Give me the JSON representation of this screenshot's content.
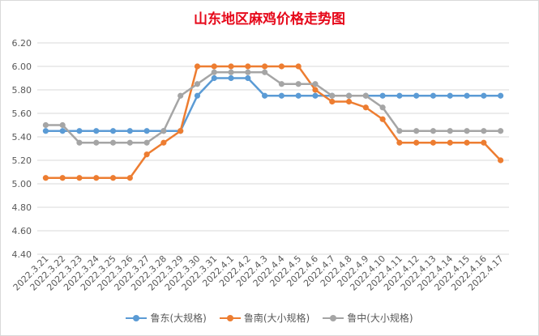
{
  "chart_data": {
    "type": "line",
    "title": "山东地区麻鸡价格走势图",
    "xlabel": "",
    "ylabel": "",
    "ylim": [
      4.4,
      6.2
    ],
    "yticks": [
      "6.20",
      "6.00",
      "5.80",
      "5.60",
      "5.40",
      "5.20",
      "5.00",
      "4.80",
      "4.60",
      "4.40"
    ],
    "grid": true,
    "legend_position": "bottom",
    "categories": [
      "2022.3.21",
      "2022.3.22",
      "2022.3.23",
      "2022.3.24",
      "2022.3.25",
      "2022.3.26",
      "2022.3.27",
      "2022.3.28",
      "2022.3.29",
      "2022.3.30",
      "2022.3.31",
      "2022.4.1",
      "2022.4.2",
      "2022.4.3",
      "2022.4.4",
      "2022.4.5",
      "2022.4.6",
      "2022.4.7",
      "2022.4.8",
      "2022.4.9",
      "2022.4.10",
      "2022.4.11",
      "2022.4.12",
      "2022.4.13",
      "2022.4.14",
      "2022.4.15",
      "2022.4.16",
      "2022.4.17"
    ],
    "series": [
      {
        "name": "鲁东(大规格)",
        "color": "#5b9bd5",
        "values": [
          5.45,
          5.45,
          5.45,
          5.45,
          5.45,
          5.45,
          5.45,
          5.45,
          5.45,
          5.75,
          5.9,
          5.9,
          5.9,
          5.75,
          5.75,
          5.75,
          5.75,
          5.75,
          5.75,
          5.75,
          5.75,
          5.75,
          5.75,
          5.75,
          5.75,
          5.75,
          5.75,
          5.75
        ]
      },
      {
        "name": "鲁南(大小规格)",
        "color": "#ed7d31",
        "values": [
          5.05,
          5.05,
          5.05,
          5.05,
          5.05,
          5.05,
          5.25,
          5.35,
          5.45,
          6.0,
          6.0,
          6.0,
          6.0,
          6.0,
          6.0,
          6.0,
          5.8,
          5.7,
          5.7,
          5.65,
          5.55,
          5.35,
          5.35,
          5.35,
          5.35,
          5.35,
          5.35,
          5.2
        ]
      },
      {
        "name": "鲁中(大小规格)",
        "color": "#a5a5a5",
        "values": [
          5.5,
          5.5,
          5.35,
          5.35,
          5.35,
          5.35,
          5.35,
          5.45,
          5.75,
          5.85,
          5.95,
          5.95,
          5.95,
          5.95,
          5.85,
          5.85,
          5.85,
          5.75,
          5.75,
          5.75,
          5.65,
          5.45,
          5.45,
          5.45,
          5.45,
          5.45,
          5.45,
          5.45
        ]
      }
    ]
  }
}
